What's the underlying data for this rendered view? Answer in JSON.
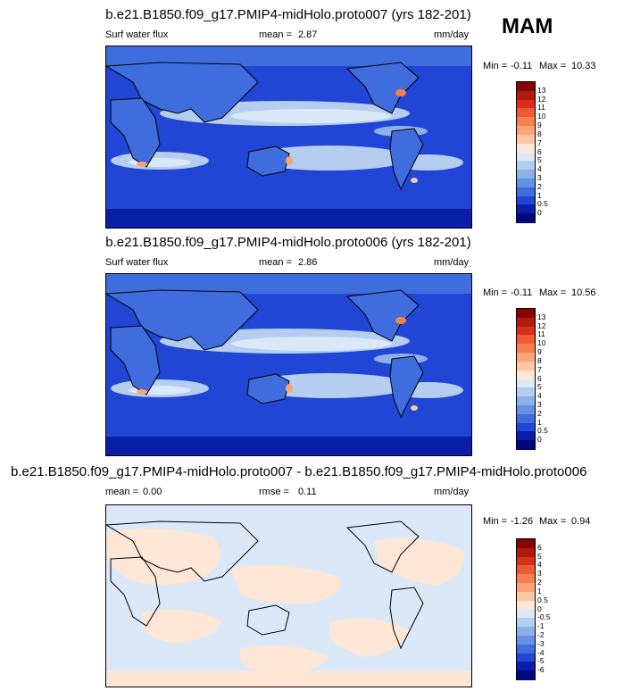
{
  "season": "MAM",
  "units": "mm/day",
  "panels": [
    {
      "title": "b.e21.B1850.f09_g17.PMIP4-midHolo.proto007 (yrs 182-201)",
      "variable": "Surf water flux",
      "stat_label": "mean =",
      "stat_value": "2.87",
      "min_label": "Min =",
      "min_value": "-0.11",
      "max_label": "Max =",
      "max_value": "10.33",
      "colorbar": {
        "labels": [
          "13",
          "12",
          "11",
          "10",
          "9",
          "8",
          "7",
          "6",
          "5",
          "4",
          "3",
          "2",
          "1",
          "0.5",
          "0"
        ],
        "colors": [
          "#8b0000",
          "#b01c0c",
          "#d6301c",
          "#ee5a34",
          "#f6814f",
          "#fca474",
          "#fcc8a4",
          "#fde6d6",
          "#dbe8f8",
          "#b5cdef",
          "#8db0ea",
          "#6590e4",
          "#3f6ddd",
          "#2145d4",
          "#0a1ea8",
          "#00087c"
        ]
      }
    },
    {
      "title": "b.e21.B1850.f09_g17.PMIP4-midHolo.proto006 (yrs 182-201)",
      "variable": "Surf water flux",
      "stat_label": "mean =",
      "stat_value": "2.86",
      "min_label": "Min =",
      "min_value": "-0.11",
      "max_label": "Max =",
      "max_value": "10.56",
      "colorbar": {
        "labels": [
          "13",
          "12",
          "11",
          "10",
          "9",
          "8",
          "7",
          "6",
          "5",
          "4",
          "3",
          "2",
          "1",
          "0.5",
          "0"
        ],
        "colors": [
          "#8b0000",
          "#b01c0c",
          "#d6301c",
          "#ee5a34",
          "#f6814f",
          "#fca474",
          "#fcc8a4",
          "#fde6d6",
          "#dbe8f8",
          "#b5cdef",
          "#8db0ea",
          "#6590e4",
          "#3f6ddd",
          "#2145d4",
          "#0a1ea8",
          "#00087c"
        ]
      }
    },
    {
      "title": "b.e21.B1850.f09_g17.PMIP4-midHolo.proto007 - b.e21.B1850.f09_g17.PMIP4-midHolo.proto006",
      "stat_label": "mean =",
      "stat_value": "0.00",
      "rmse_label": "rmse =",
      "rmse_value": "0.11",
      "min_label": "Min =",
      "min_value": "-1.26",
      "max_label": "Max =",
      "max_value": "0.94",
      "colorbar": {
        "labels": [
          "6",
          "5",
          "4",
          "3",
          "2",
          "1",
          "0.5",
          "0",
          "-0.5",
          "-1",
          "-2",
          "-3",
          "-4",
          "-5",
          "-6"
        ],
        "colors": [
          "#8b0000",
          "#b01c0c",
          "#d6301c",
          "#ee5a34",
          "#f6814f",
          "#fca474",
          "#fcc8a4",
          "#fde6d6",
          "#dbe8f8",
          "#b5cdef",
          "#8db0ea",
          "#6590e4",
          "#3f6ddd",
          "#2145d4",
          "#0a1ea8",
          "#00087c"
        ]
      }
    }
  ],
  "map_colors": {
    "deep": "#1f3fd0",
    "mid": "#3f6ddd",
    "light": "#8db0ea",
    "pale": "#dbe8f8",
    "polar": "#0a1ea8",
    "high": "#f6814f",
    "diff_neg": "#dbe8f8",
    "diff_pos": "#fde6d6"
  }
}
